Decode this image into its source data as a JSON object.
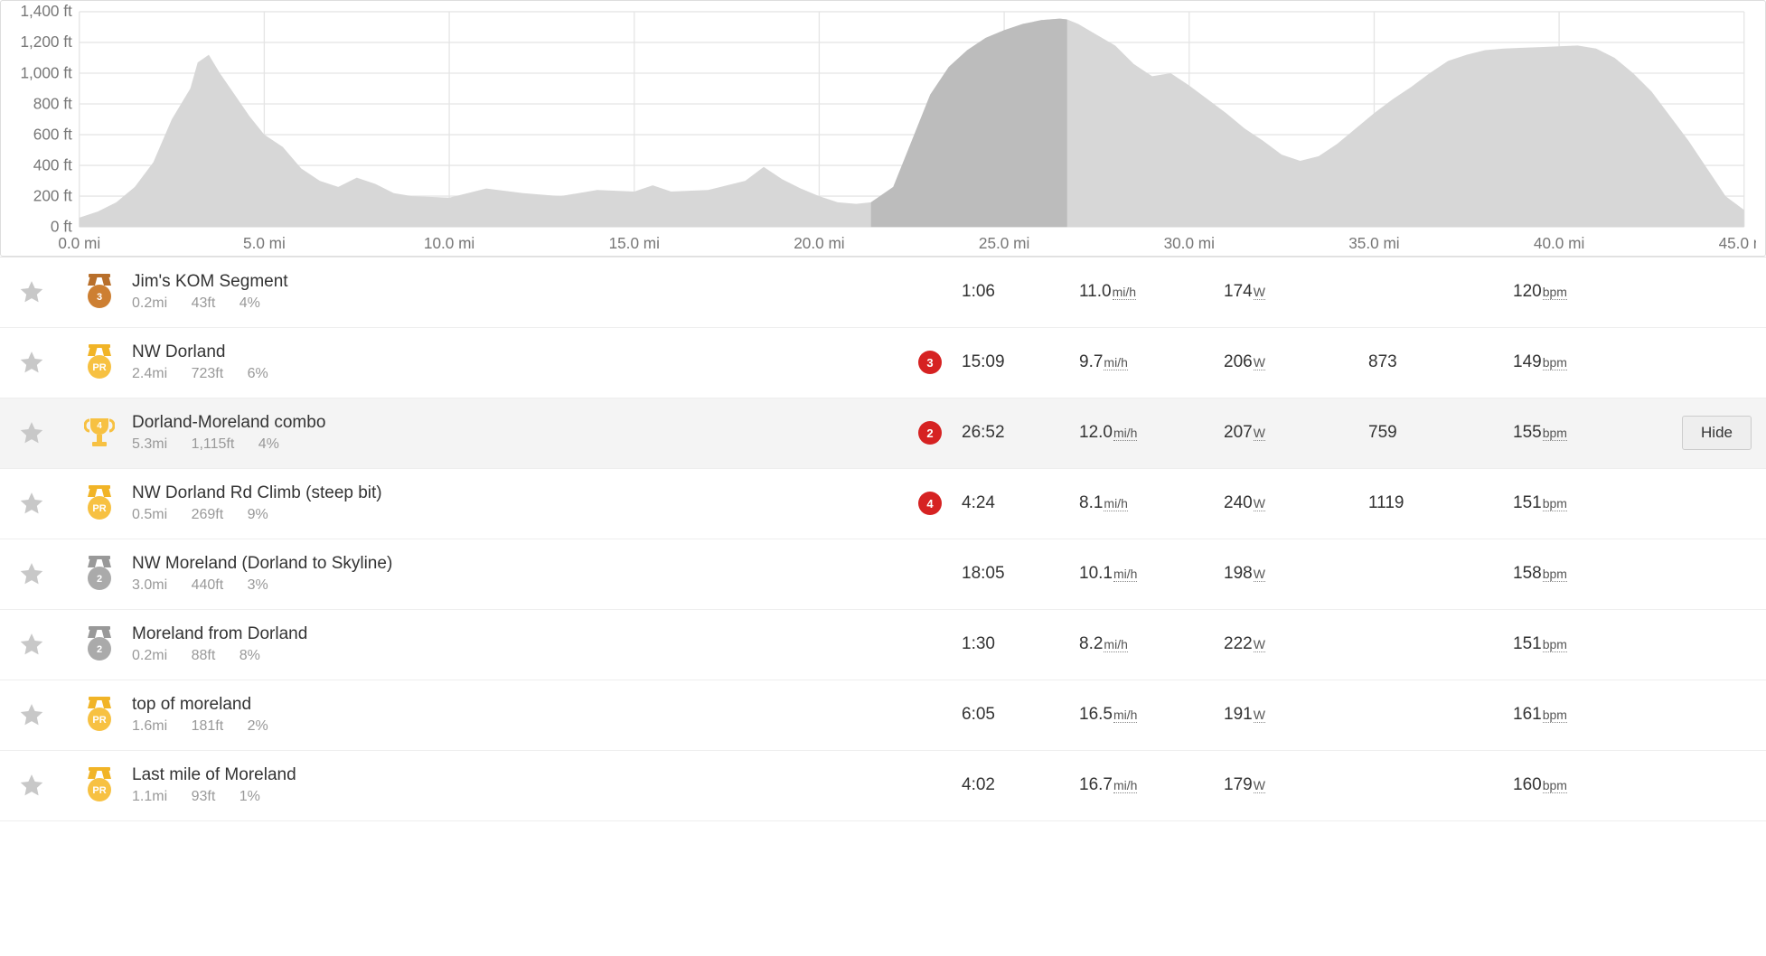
{
  "elevation_chart": {
    "type": "area",
    "x_unit": "mi",
    "y_unit": "ft",
    "xlim": [
      0,
      45
    ],
    "ylim": [
      0,
      1400
    ],
    "x_ticks": [
      0.0,
      5.0,
      10.0,
      15.0,
      20.0,
      25.0,
      30.0,
      35.0,
      40.0,
      45.0
    ],
    "y_ticks": [
      0,
      200,
      400,
      600,
      800,
      1000,
      1200,
      1400
    ],
    "background_color": "#ffffff",
    "grid_color": "#e5e5e5",
    "area_fill": "#d7d7d7",
    "highlight_fill": "#bcbcbc",
    "highlight_range_mi": [
      21.4,
      26.7
    ],
    "axis_label_color": "#777777",
    "axis_label_fontsize": 13,
    "profile": [
      [
        0.0,
        60
      ],
      [
        0.5,
        100
      ],
      [
        1.0,
        160
      ],
      [
        1.5,
        260
      ],
      [
        2.0,
        420
      ],
      [
        2.5,
        700
      ],
      [
        3.0,
        900
      ],
      [
        3.2,
        1070
      ],
      [
        3.5,
        1120
      ],
      [
        3.8,
        1000
      ],
      [
        4.2,
        860
      ],
      [
        4.6,
        720
      ],
      [
        5.0,
        600
      ],
      [
        5.5,
        520
      ],
      [
        6.0,
        380
      ],
      [
        6.5,
        300
      ],
      [
        7.0,
        260
      ],
      [
        7.5,
        320
      ],
      [
        8.0,
        280
      ],
      [
        8.5,
        220
      ],
      [
        9.0,
        200
      ],
      [
        10.0,
        190
      ],
      [
        11.0,
        250
      ],
      [
        12.0,
        220
      ],
      [
        13.0,
        200
      ],
      [
        14.0,
        240
      ],
      [
        15.0,
        230
      ],
      [
        15.5,
        270
      ],
      [
        16.0,
        230
      ],
      [
        17.0,
        240
      ],
      [
        18.0,
        300
      ],
      [
        18.5,
        390
      ],
      [
        19.0,
        310
      ],
      [
        19.5,
        250
      ],
      [
        20.0,
        200
      ],
      [
        20.5,
        160
      ],
      [
        21.0,
        150
      ],
      [
        21.4,
        160
      ],
      [
        22.0,
        260
      ],
      [
        22.5,
        560
      ],
      [
        23.0,
        860
      ],
      [
        23.5,
        1040
      ],
      [
        24.0,
        1150
      ],
      [
        24.5,
        1230
      ],
      [
        25.0,
        1280
      ],
      [
        25.5,
        1320
      ],
      [
        26.0,
        1345
      ],
      [
        26.5,
        1355
      ],
      [
        26.7,
        1350
      ],
      [
        27.0,
        1320
      ],
      [
        27.5,
        1250
      ],
      [
        28.0,
        1180
      ],
      [
        28.5,
        1060
      ],
      [
        29.0,
        980
      ],
      [
        29.5,
        1000
      ],
      [
        30.0,
        920
      ],
      [
        30.5,
        830
      ],
      [
        31.0,
        740
      ],
      [
        31.5,
        640
      ],
      [
        32.0,
        560
      ],
      [
        32.5,
        470
      ],
      [
        33.0,
        430
      ],
      [
        33.5,
        460
      ],
      [
        34.0,
        540
      ],
      [
        34.5,
        640
      ],
      [
        35.0,
        740
      ],
      [
        35.5,
        830
      ],
      [
        36.0,
        910
      ],
      [
        36.5,
        1000
      ],
      [
        37.0,
        1080
      ],
      [
        37.5,
        1120
      ],
      [
        38.0,
        1150
      ],
      [
        38.5,
        1160
      ],
      [
        39.0,
        1165
      ],
      [
        39.5,
        1170
      ],
      [
        40.0,
        1175
      ],
      [
        40.5,
        1180
      ],
      [
        41.0,
        1160
      ],
      [
        41.5,
        1100
      ],
      [
        42.0,
        1000
      ],
      [
        42.5,
        880
      ],
      [
        43.0,
        720
      ],
      [
        43.5,
        560
      ],
      [
        44.0,
        380
      ],
      [
        44.5,
        200
      ],
      [
        45.0,
        110
      ]
    ]
  },
  "units": {
    "speed": "mi/h",
    "power": "W",
    "hr": "bpm"
  },
  "colors": {
    "star": "#c8c8c8",
    "medal_gold": "#f7c142",
    "medal_gold_ribbon": "#f1b427",
    "medal_silver": "#aaaaaa",
    "medal_silver_ribbon": "#999999",
    "medal_bronze": "#cd7f32",
    "medal_bronze_ribbon": "#b86f2b",
    "trophy_gold": "#f7c142",
    "rank_red": "#d62222",
    "rank_text": "#ffffff",
    "hide_btn_bg": "#eeeeee"
  },
  "hide_label": "Hide",
  "segments": [
    {
      "name": "Jim's KOM Segment",
      "distance": "0.2mi",
      "elevation": "43ft",
      "grade": "4%",
      "achievement": {
        "type": "medal",
        "color": "bronze",
        "text": "3"
      },
      "rank": null,
      "time": "1:06",
      "speed": "11.0",
      "power": "174",
      "vam": "",
      "hr": "120",
      "highlight": false,
      "show_hide": false
    },
    {
      "name": "NW Dorland",
      "distance": "2.4mi",
      "elevation": "723ft",
      "grade": "6%",
      "achievement": {
        "type": "medal",
        "color": "gold",
        "text": "PR"
      },
      "rank": "3",
      "time": "15:09",
      "speed": "9.7",
      "power": "206",
      "vam": "873",
      "hr": "149",
      "highlight": false,
      "show_hide": false
    },
    {
      "name": "Dorland-Moreland combo",
      "distance": "5.3mi",
      "elevation": "1,115ft",
      "grade": "4%",
      "achievement": {
        "type": "trophy",
        "color": "gold",
        "text": "4"
      },
      "rank": "2",
      "time": "26:52",
      "speed": "12.0",
      "power": "207",
      "vam": "759",
      "hr": "155",
      "highlight": true,
      "show_hide": true
    },
    {
      "name": "NW Dorland Rd Climb (steep bit)",
      "distance": "0.5mi",
      "elevation": "269ft",
      "grade": "9%",
      "achievement": {
        "type": "medal",
        "color": "gold",
        "text": "PR"
      },
      "rank": "4",
      "time": "4:24",
      "speed": "8.1",
      "power": "240",
      "vam": "1119",
      "hr": "151",
      "highlight": false,
      "show_hide": false
    },
    {
      "name": "NW Moreland (Dorland to Skyline)",
      "distance": "3.0mi",
      "elevation": "440ft",
      "grade": "3%",
      "achievement": {
        "type": "medal",
        "color": "silver",
        "text": "2"
      },
      "rank": null,
      "time": "18:05",
      "speed": "10.1",
      "power": "198",
      "vam": "",
      "hr": "158",
      "highlight": false,
      "show_hide": false
    },
    {
      "name": "Moreland from Dorland",
      "distance": "0.2mi",
      "elevation": "88ft",
      "grade": "8%",
      "achievement": {
        "type": "medal",
        "color": "silver",
        "text": "2"
      },
      "rank": null,
      "time": "1:30",
      "speed": "8.2",
      "power": "222",
      "vam": "",
      "hr": "151",
      "highlight": false,
      "show_hide": false
    },
    {
      "name": "top of moreland",
      "distance": "1.6mi",
      "elevation": "181ft",
      "grade": "2%",
      "achievement": {
        "type": "medal",
        "color": "gold",
        "text": "PR"
      },
      "rank": null,
      "time": "6:05",
      "speed": "16.5",
      "power": "191",
      "vam": "",
      "hr": "161",
      "highlight": false,
      "show_hide": false
    },
    {
      "name": "Last mile of Moreland",
      "distance": "1.1mi",
      "elevation": "93ft",
      "grade": "1%",
      "achievement": {
        "type": "medal",
        "color": "gold",
        "text": "PR"
      },
      "rank": null,
      "time": "4:02",
      "speed": "16.7",
      "power": "179",
      "vam": "",
      "hr": "160",
      "highlight": false,
      "show_hide": false
    }
  ]
}
